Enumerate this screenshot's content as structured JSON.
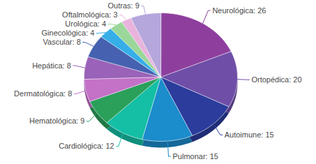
{
  "chart_data": {
    "type": "pie",
    "categories": [
      "Neurológica",
      "Ortopédica",
      "Autoimune",
      "Pulmonar",
      "Cardiológica",
      "Hematológica",
      "Dermatológica",
      "Hepática",
      "Vascular",
      "Ginecológica",
      "Urológica",
      "Oftalmológica",
      "Outras"
    ],
    "values": [
      26,
      20,
      15,
      15,
      12,
      9,
      8,
      8,
      8,
      4,
      4,
      3,
      9
    ],
    "value_labels": [
      "Neurológica: 26",
      "Ortopédica: 20",
      "Autoimune: 15",
      "Pulmonar: 15",
      "Cardiológica: 12",
      "Hematológica: 9",
      "Dermatológica: 8",
      "Hepática: 8",
      "Vascular: 8",
      "Ginecológica: 4",
      "Urológica: 4",
      "Oftalmológica: 3",
      "Outras: 9"
    ],
    "colors": [
      "#8e3f9e",
      "#6f4ea8",
      "#2b3c9c",
      "#1b8ccc",
      "#14bfa5",
      "#2aa05a",
      "#c471c8",
      "#9a62b8",
      "#4561b0",
      "#36aee8",
      "#9bd79a",
      "#e9b3dc",
      "#b5a6dc"
    ],
    "data_labels": true
  }
}
